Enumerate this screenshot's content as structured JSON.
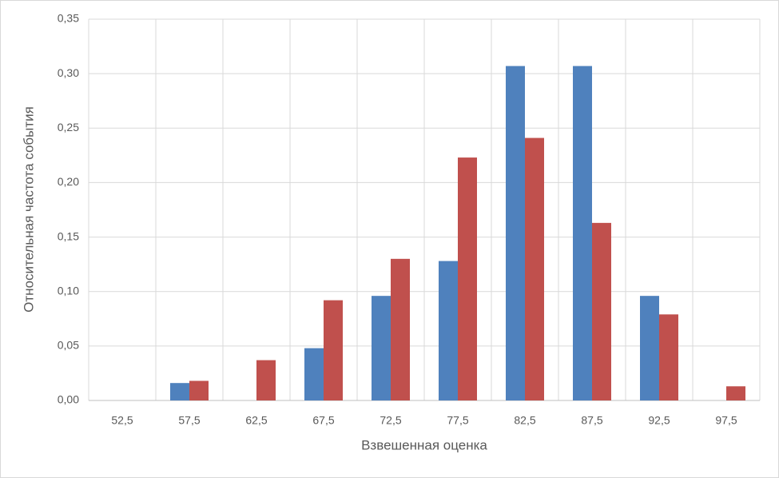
{
  "chart_data": {
    "type": "bar",
    "x_label": "Взвешенная оценка",
    "y_label": "Относительная частота события",
    "categories": [
      "52,5",
      "57,5",
      "62,5",
      "67,5",
      "72,5",
      "77,5",
      "82,5",
      "87,5",
      "92,5",
      "97,5"
    ],
    "series": [
      {
        "color": "#4f81bd",
        "values": [
          0,
          0.016,
          0,
          0.048,
          0.096,
          0.128,
          0.307,
          0.307,
          0.096,
          0
        ]
      },
      {
        "color": "#c0504d",
        "values": [
          0,
          0.018,
          0.037,
          0.092,
          0.13,
          0.223,
          0.241,
          0.163,
          0.079,
          0.013
        ]
      }
    ],
    "ylim": [
      0,
      0.35
    ],
    "yticks": [
      {
        "value": 0,
        "label": "0,00"
      },
      {
        "value": 0.05,
        "label": "0,05"
      },
      {
        "value": 0.1,
        "label": "0,10"
      },
      {
        "value": 0.15,
        "label": "0,15"
      },
      {
        "value": 0.2,
        "label": "0,20"
      },
      {
        "value": 0.25,
        "label": "0,25"
      },
      {
        "value": 0.3,
        "label": "0,30"
      },
      {
        "value": 0.35,
        "label": "0,35"
      }
    ],
    "grid": true
  }
}
